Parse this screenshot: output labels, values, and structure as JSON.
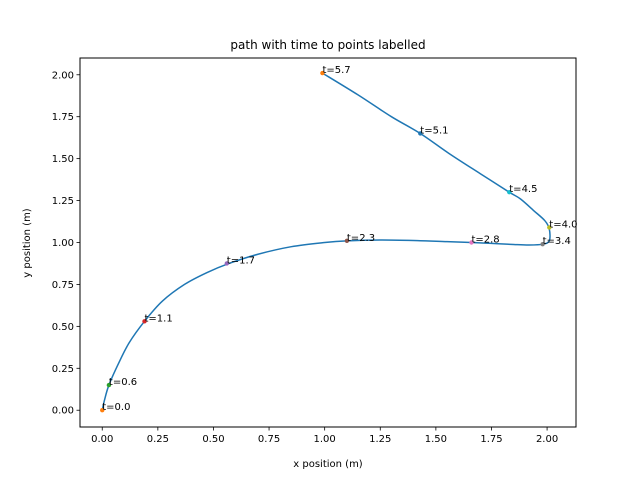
{
  "chart_data": {
    "type": "line",
    "title": "path with time to points labelled",
    "xlabel": "x position (m)",
    "ylabel": "y position (m)",
    "xlim": [
      -0.1,
      2.13
    ],
    "ylim": [
      -0.1,
      2.1
    ],
    "grid": false,
    "xticks": [
      0.0,
      0.25,
      0.5,
      0.75,
      1.0,
      1.25,
      1.5,
      1.75,
      2.0
    ],
    "xtick_labels": [
      "0.00",
      "0.25",
      "0.50",
      "0.75",
      "1.00",
      "1.25",
      "1.50",
      "1.75",
      "2.00"
    ],
    "yticks": [
      0.0,
      0.25,
      0.5,
      0.75,
      1.0,
      1.25,
      1.5,
      1.75,
      2.0
    ],
    "ytick_labels": [
      "0.00",
      "0.25",
      "0.50",
      "0.75",
      "1.00",
      "1.25",
      "1.50",
      "1.75",
      "2.00"
    ],
    "path": {
      "color": "#1f77b4",
      "x": [
        0.0,
        0.01,
        0.03,
        0.07,
        0.12,
        0.19,
        0.27,
        0.37,
        0.47,
        0.57,
        0.7,
        0.85,
        1.0,
        1.1,
        1.25,
        1.4,
        1.55,
        1.66,
        1.75,
        1.85,
        1.92,
        1.98,
        2.01,
        2.01,
        1.99,
        1.94,
        1.88,
        1.83,
        1.7,
        1.56,
        1.43,
        1.3,
        1.15,
        0.99
      ],
      "y": [
        0.0,
        0.06,
        0.15,
        0.27,
        0.4,
        0.53,
        0.65,
        0.75,
        0.82,
        0.875,
        0.93,
        0.975,
        1.0,
        1.01,
        1.015,
        1.012,
        1.005,
        1.0,
        0.995,
        0.988,
        0.985,
        0.99,
        1.01,
        1.08,
        1.13,
        1.19,
        1.26,
        1.3,
        1.41,
        1.53,
        1.65,
        1.75,
        1.88,
        2.01
      ]
    },
    "points": [
      {
        "label": "t=0.0",
        "x": 0.0,
        "y": 0.0,
        "color": "#ff7f0e"
      },
      {
        "label": "t=0.6",
        "x": 0.03,
        "y": 0.15,
        "color": "#2ca02c"
      },
      {
        "label": "t=1.1",
        "x": 0.19,
        "y": 0.53,
        "color": "#d62728"
      },
      {
        "label": "t=1.7",
        "x": 0.56,
        "y": 0.875,
        "color": "#9467bd"
      },
      {
        "label": "t=2.3",
        "x": 1.1,
        "y": 1.01,
        "color": "#8c564b"
      },
      {
        "label": "t=2.8",
        "x": 1.66,
        "y": 1.0,
        "color": "#e377c2"
      },
      {
        "label": "t=3.4",
        "x": 1.98,
        "y": 0.99,
        "color": "#7f7f7f"
      },
      {
        "label": "t=4.0",
        "x": 2.01,
        "y": 1.09,
        "color": "#bcbd22"
      },
      {
        "label": "t=4.5",
        "x": 1.83,
        "y": 1.3,
        "color": "#17becf"
      },
      {
        "label": "t=5.1",
        "x": 1.43,
        "y": 1.65,
        "color": "#1f77b4"
      },
      {
        "label": "t=5.7",
        "x": 0.99,
        "y": 2.01,
        "color": "#ff7f0e"
      }
    ]
  }
}
